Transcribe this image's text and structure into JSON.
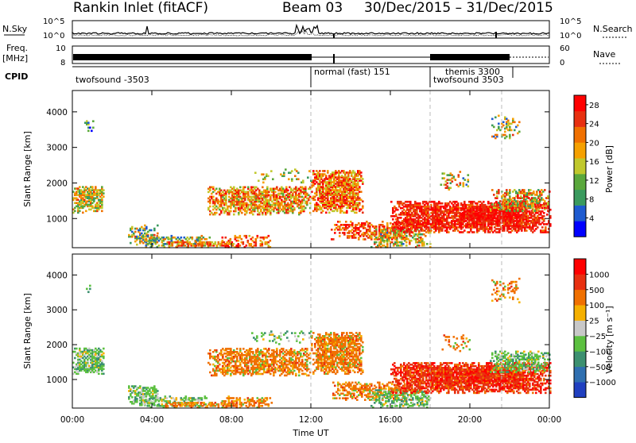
{
  "header": {
    "station": "Rankin Inlet (fitACF)",
    "beam": "Beam 03",
    "date_range": "30/Dec/2015 – 31/Dec/2015"
  },
  "status": {
    "nsky_label": "N.Sky",
    "nsearch_label": "N.Search",
    "freq_label_1": "Freq.",
    "freq_label_2": "[MHz]",
    "nave_label": "Nave",
    "cpid_label": "CPID",
    "nsky_ticks": [
      "10^5",
      "10^0"
    ],
    "nsearch_ticks": [
      "10^5",
      "10^0"
    ],
    "freq_ticks": [
      "10",
      "8"
    ],
    "nave_ticks": [
      "60",
      "0"
    ],
    "cpid_segments": [
      {
        "name": "twofsound",
        "id": "-3503",
        "start_h": 0,
        "end_h": 12
      },
      {
        "name": "normal (fast)",
        "id": "151",
        "start_h": 12,
        "end_h": 18
      },
      {
        "name": "themis",
        "id": "3300",
        "start_h": 18,
        "end_h": 21.6
      },
      {
        "name": "twofsound",
        "id": "3503",
        "start_h": 18,
        "end_h": 24
      }
    ]
  },
  "chart_data": [
    {
      "type": "heatmap",
      "name": "power",
      "ylabel": "Slant Range [km]",
      "xlabel": "",
      "ylim": [
        180,
        4600
      ],
      "xlim_hours": [
        0,
        24
      ],
      "yticks": [
        "1000",
        "2000",
        "3000",
        "4000"
      ],
      "colorbar_label": "Power [dB]",
      "colorbar_ticks": [
        "4",
        "8",
        "12",
        "16",
        "20",
        "24",
        "28"
      ],
      "colorbar_range": [
        0,
        30
      ],
      "colorbar_colors": [
        "#0000ff",
        "#1e5bd0",
        "#3a9a5e",
        "#5aa83c",
        "#c0c82c",
        "#f5a000",
        "#f07000",
        "#e83010",
        "#ff0000"
      ]
    },
    {
      "type": "heatmap",
      "name": "velocity",
      "ylabel": "Slant Range [km]",
      "xlabel": "Time UT",
      "ylim": [
        180,
        4600
      ],
      "xlim_hours": [
        0,
        24
      ],
      "yticks": [
        "1000",
        "2000",
        "3000",
        "4000"
      ],
      "xticks": [
        "00:00",
        "04:00",
        "08:00",
        "12:00",
        "16:00",
        "20:00",
        "00:00"
      ],
      "colorbar_label": "Velocity [m s⁻¹]",
      "colorbar_ticks": [
        "1000",
        "500",
        "100",
        "25",
        "−25",
        "−100",
        "−500",
        "−1000"
      ],
      "colorbar_colors": [
        "#2040c0",
        "#2f6fb0",
        "#3c9070",
        "#5cc040",
        "#c8c8c8",
        "#f5b000",
        "#f07000",
        "#e83010",
        "#ff0000"
      ]
    }
  ]
}
